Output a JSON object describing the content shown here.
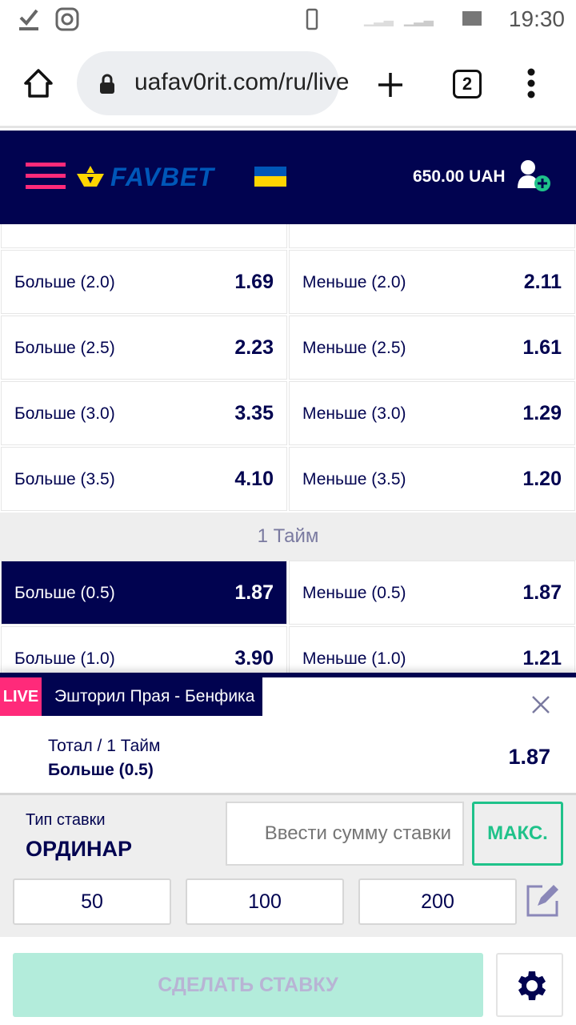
{
  "status_bar": {
    "time": "19:30",
    "icons": [
      "download-done-icon",
      "instagram-icon",
      "vibrate-icon",
      "signal-icon",
      "signal-icon",
      "battery-icon"
    ]
  },
  "browser": {
    "url": "uafav0rit.com/ru/live",
    "tab_count": "2"
  },
  "header": {
    "brand": "FAVBET",
    "balance": "650.00 UAH",
    "accent": "#ff2a7a",
    "brand_color": "#0057b8"
  },
  "markets": {
    "rows": [
      {
        "left": {
          "label": "Больше (2.0)",
          "odd": "1.69"
        },
        "right": {
          "label": "Меньше (2.0)",
          "odd": "2.11"
        }
      },
      {
        "left": {
          "label": "Больше (2.5)",
          "odd": "2.23"
        },
        "right": {
          "label": "Меньше (2.5)",
          "odd": "1.61"
        }
      },
      {
        "left": {
          "label": "Больше (3.0)",
          "odd": "3.35"
        },
        "right": {
          "label": "Меньше (3.0)",
          "odd": "1.29"
        }
      },
      {
        "left": {
          "label": "Больше (3.5)",
          "odd": "4.10"
        },
        "right": {
          "label": "Меньше (3.5)",
          "odd": "1.20"
        }
      }
    ],
    "section": "1 Тайм",
    "rows2": [
      {
        "left": {
          "label": "Больше (0.5)",
          "odd": "1.87",
          "selected": true
        },
        "right": {
          "label": "Меньше (0.5)",
          "odd": "1.87"
        }
      },
      {
        "left": {
          "label": "Больше (1.0)",
          "odd": "3.90"
        },
        "right": {
          "label": "Меньше (1.0)",
          "odd": "1.21"
        }
      }
    ]
  },
  "betslip": {
    "live": "LIVE",
    "event": "Эшторил Прая - Бенфика",
    "market": "Тотал / 1 Тайм",
    "selection": "Больше (0.5)",
    "odd": "1.87",
    "bet_type_label": "Тип ставки",
    "bet_type": "ОРДИНАР",
    "stake_placeholder": "Ввести сумму ставки",
    "max": "МАКС.",
    "quick": [
      "50",
      "100",
      "200"
    ],
    "submit": "СДЕЛАТЬ СТАВКУ"
  }
}
